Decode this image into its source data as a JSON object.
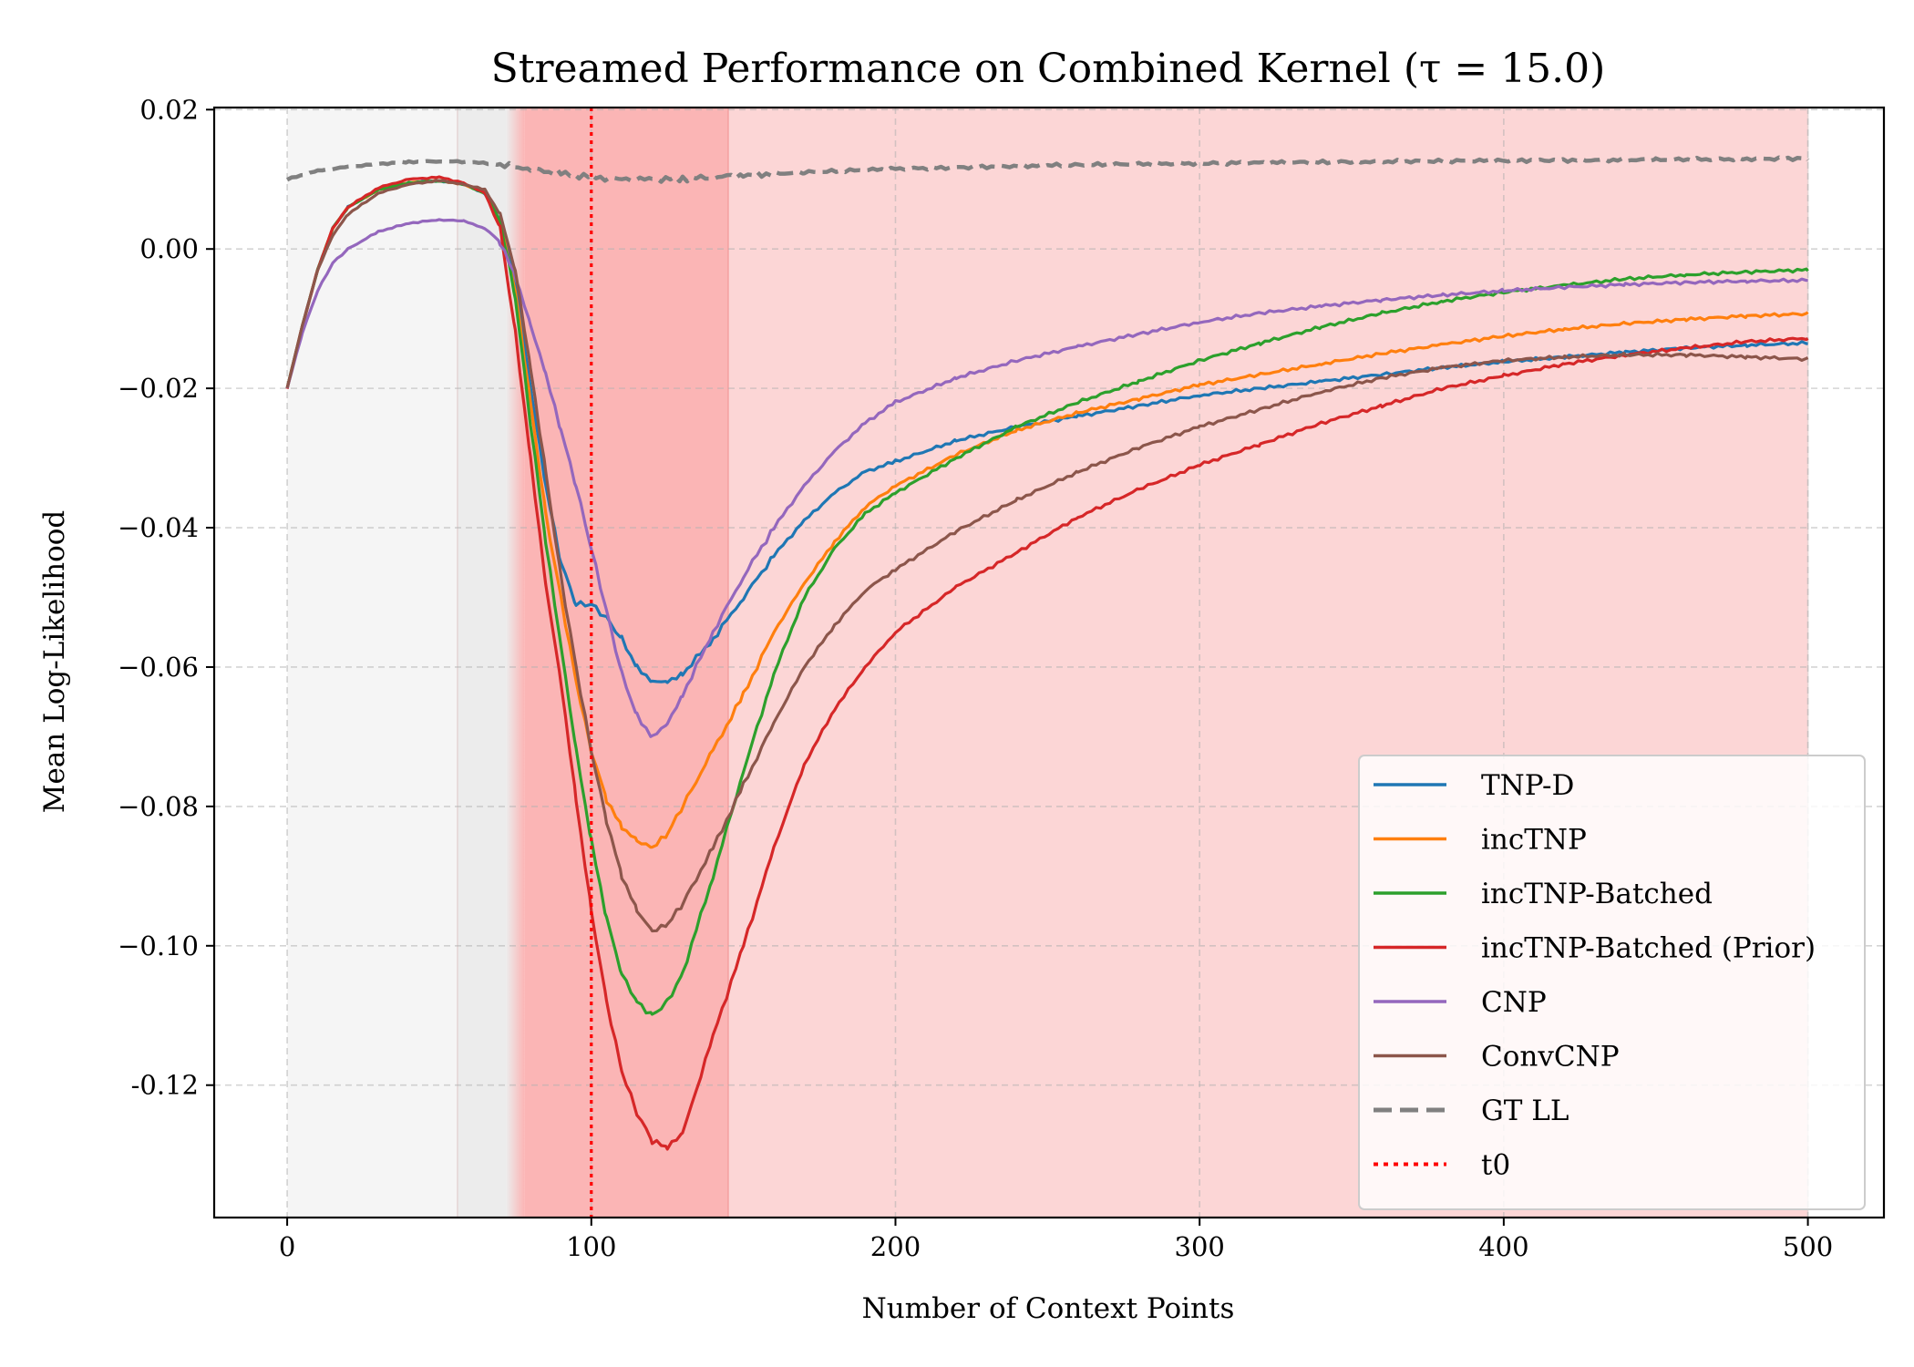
{
  "chart_data": {
    "type": "line",
    "title": "Streamed Performance on Combined Kernel (τ = 15.0)",
    "xlabel": "Number of Context Points",
    "ylabel": "Mean Log-Likelihood",
    "xlim": [
      -24,
      525
    ],
    "ylim": [
      -0.139,
      0.0203
    ],
    "xticks": [
      0,
      100,
      200,
      300,
      400,
      500
    ],
    "xtick_labels": [
      "0",
      "100",
      "200",
      "300",
      "400",
      "500"
    ],
    "yticks": [
      0.02,
      0.0,
      -0.02,
      -0.04,
      -0.06,
      -0.08,
      -0.1,
      -0.12
    ],
    "ytick_labels": [
      "0.02",
      "0.00",
      "−0.02",
      "−0.04",
      "−0.06",
      "−0.08",
      "−0.10",
      "-0.12"
    ],
    "grid": true,
    "legend_position": "bottom-right",
    "shaded_regions": [
      {
        "x_start": 0,
        "x_end": 56,
        "color": "#f5f5f5"
      },
      {
        "x_start": 56,
        "x_end": 72,
        "color": "#ececec"
      },
      {
        "x_start": 72,
        "x_end": 78,
        "color": "#fcc2c2",
        "gradient_from": "#ececec"
      },
      {
        "x_start": 78,
        "x_end": 145,
        "color": "#fbb5b5"
      },
      {
        "x_start": 145,
        "x_end": 500,
        "color": "#fcd6d6"
      }
    ],
    "series": [
      {
        "name": "TNP-D",
        "color": "#1f77b4",
        "style": "solid",
        "x": [
          0,
          5,
          10,
          15,
          20,
          30,
          40,
          50,
          58,
          65,
          70,
          75,
          80,
          85,
          90,
          95,
          100,
          105,
          110,
          115,
          120,
          125,
          130,
          140,
          150,
          160,
          170,
          180,
          190,
          200,
          220,
          240,
          260,
          280,
          300,
          320,
          340,
          360,
          380,
          400,
          420,
          440,
          460,
          480,
          500
        ],
        "y": [
          -0.02,
          -0.011,
          -0.003,
          0.003,
          0.006,
          0.0085,
          0.0095,
          0.0098,
          0.0093,
          0.008,
          0.004,
          -0.005,
          -0.02,
          -0.034,
          -0.045,
          -0.051,
          -0.051,
          -0.053,
          -0.056,
          -0.06,
          -0.062,
          -0.062,
          -0.061,
          -0.056,
          -0.05,
          -0.044,
          -0.039,
          -0.035,
          -0.032,
          -0.0305,
          -0.0275,
          -0.0255,
          -0.024,
          -0.0225,
          -0.021,
          -0.02,
          -0.019,
          -0.018,
          -0.017,
          -0.0162,
          -0.0155,
          -0.0148,
          -0.0142,
          -0.0138,
          -0.0135
        ]
      },
      {
        "name": "incTNP",
        "color": "#ff7f0e",
        "style": "solid",
        "x": [
          0,
          5,
          10,
          15,
          20,
          30,
          40,
          50,
          58,
          65,
          70,
          75,
          80,
          85,
          90,
          95,
          100,
          105,
          110,
          115,
          120,
          125,
          130,
          140,
          150,
          160,
          170,
          180,
          190,
          200,
          220,
          240,
          260,
          280,
          300,
          320,
          340,
          360,
          380,
          400,
          420,
          440,
          460,
          480,
          500
        ],
        "y": [
          -0.02,
          -0.011,
          -0.003,
          0.003,
          0.006,
          0.0085,
          0.0095,
          0.0098,
          0.0093,
          0.008,
          0.004,
          -0.006,
          -0.022,
          -0.038,
          -0.05,
          -0.062,
          -0.072,
          -0.079,
          -0.083,
          -0.085,
          -0.086,
          -0.084,
          -0.08,
          -0.072,
          -0.064,
          -0.055,
          -0.048,
          -0.042,
          -0.037,
          -0.034,
          -0.0295,
          -0.026,
          -0.0235,
          -0.0215,
          -0.0195,
          -0.018,
          -0.0165,
          -0.015,
          -0.0137,
          -0.0125,
          -0.0115,
          -0.0107,
          -0.0101,
          -0.0096,
          -0.0093
        ]
      },
      {
        "name": "incTNP-Batched",
        "color": "#2ca02c",
        "style": "solid",
        "x": [
          0,
          5,
          10,
          15,
          20,
          30,
          40,
          50,
          58,
          65,
          70,
          75,
          80,
          85,
          90,
          95,
          100,
          105,
          110,
          115,
          120,
          125,
          130,
          140,
          150,
          160,
          170,
          180,
          190,
          200,
          220,
          240,
          260,
          280,
          300,
          320,
          340,
          360,
          380,
          400,
          420,
          440,
          460,
          480,
          500
        ],
        "y": [
          -0.02,
          -0.011,
          -0.003,
          0.003,
          0.006,
          0.0085,
          0.0095,
          0.0098,
          0.0093,
          0.008,
          0.004,
          -0.007,
          -0.025,
          -0.042,
          -0.057,
          -0.072,
          -0.085,
          -0.096,
          -0.104,
          -0.108,
          -0.11,
          -0.108,
          -0.104,
          -0.09,
          -0.075,
          -0.061,
          -0.05,
          -0.043,
          -0.038,
          -0.035,
          -0.03,
          -0.0255,
          -0.022,
          -0.019,
          -0.016,
          -0.0135,
          -0.0112,
          -0.0092,
          -0.0075,
          -0.0062,
          -0.0052,
          -0.0043,
          -0.0037,
          -0.0033,
          -0.003
        ]
      },
      {
        "name": "incTNP-Batched (Prior)",
        "color": "#d62728",
        "style": "solid",
        "x": [
          0,
          5,
          10,
          15,
          20,
          30,
          40,
          50,
          58,
          65,
          70,
          75,
          80,
          85,
          90,
          95,
          100,
          105,
          110,
          115,
          120,
          125,
          130,
          140,
          150,
          160,
          170,
          180,
          190,
          200,
          220,
          240,
          260,
          280,
          300,
          320,
          340,
          360,
          380,
          400,
          420,
          440,
          460,
          480,
          500
        ],
        "y": [
          -0.02,
          -0.011,
          -0.003,
          0.003,
          0.006,
          0.0088,
          0.01,
          0.0103,
          0.0095,
          0.008,
          0.003,
          -0.012,
          -0.03,
          -0.048,
          -0.062,
          -0.079,
          -0.095,
          -0.108,
          -0.118,
          -0.124,
          -0.128,
          -0.129,
          -0.127,
          -0.113,
          -0.1,
          -0.086,
          -0.074,
          -0.066,
          -0.06,
          -0.055,
          -0.0485,
          -0.0435,
          -0.0385,
          -0.0345,
          -0.031,
          -0.028,
          -0.025,
          -0.0225,
          -0.02,
          -0.0182,
          -0.0165,
          -0.0152,
          -0.0142,
          -0.0133,
          -0.0128
        ]
      },
      {
        "name": "CNP",
        "color": "#9467bd",
        "style": "solid",
        "x": [
          0,
          5,
          10,
          15,
          20,
          30,
          40,
          50,
          58,
          65,
          70,
          75,
          80,
          85,
          90,
          95,
          100,
          105,
          110,
          115,
          120,
          125,
          130,
          140,
          150,
          160,
          170,
          180,
          190,
          200,
          220,
          240,
          260,
          280,
          300,
          320,
          340,
          360,
          380,
          400,
          420,
          440,
          460,
          480,
          500
        ],
        "y": [
          -0.02,
          -0.012,
          -0.006,
          -0.002,
          0.0,
          0.0025,
          0.0037,
          0.0042,
          0.004,
          0.003,
          0.001,
          -0.004,
          -0.011,
          -0.018,
          -0.026,
          -0.034,
          -0.043,
          -0.052,
          -0.061,
          -0.067,
          -0.07,
          -0.068,
          -0.064,
          -0.055,
          -0.047,
          -0.04,
          -0.034,
          -0.029,
          -0.025,
          -0.022,
          -0.0185,
          -0.016,
          -0.014,
          -0.0122,
          -0.0105,
          -0.0092,
          -0.0082,
          -0.0073,
          -0.0066,
          -0.006,
          -0.0055,
          -0.0051,
          -0.0048,
          -0.0046,
          -0.0045
        ]
      },
      {
        "name": "ConvCNP",
        "color": "#8c564b",
        "style": "solid",
        "x": [
          0,
          5,
          10,
          15,
          20,
          30,
          40,
          50,
          58,
          65,
          70,
          75,
          80,
          85,
          90,
          95,
          100,
          105,
          110,
          115,
          120,
          125,
          130,
          140,
          150,
          160,
          170,
          180,
          190,
          200,
          220,
          240,
          260,
          280,
          300,
          320,
          340,
          360,
          380,
          400,
          420,
          440,
          460,
          480,
          500
        ],
        "y": [
          -0.02,
          -0.011,
          -0.003,
          0.002,
          0.005,
          0.008,
          0.0093,
          0.0098,
          0.0093,
          0.0085,
          0.005,
          -0.003,
          -0.017,
          -0.032,
          -0.047,
          -0.06,
          -0.072,
          -0.082,
          -0.09,
          -0.095,
          -0.098,
          -0.097,
          -0.094,
          -0.086,
          -0.077,
          -0.068,
          -0.06,
          -0.054,
          -0.049,
          -0.046,
          -0.0405,
          -0.036,
          -0.032,
          -0.0285,
          -0.0255,
          -0.023,
          -0.0205,
          -0.0185,
          -0.017,
          -0.016,
          -0.0155,
          -0.0152,
          -0.0152,
          -0.0155,
          -0.0158
        ]
      },
      {
        "name": "GT LL",
        "color": "#808080",
        "style": "dashed",
        "x": [
          0,
          10,
          20,
          30,
          40,
          50,
          60,
          70,
          80,
          90,
          100,
          110,
          120,
          130,
          140,
          150,
          170,
          200,
          250,
          300,
          350,
          400,
          450,
          500
        ],
        "y": [
          0.01,
          0.0112,
          0.0118,
          0.0122,
          0.0125,
          0.0126,
          0.0125,
          0.0121,
          0.0115,
          0.0108,
          0.0103,
          0.01,
          0.01,
          0.0101,
          0.0103,
          0.0106,
          0.011,
          0.0115,
          0.012,
          0.0123,
          0.0125,
          0.0127,
          0.0128,
          0.013
        ]
      }
    ],
    "vertical_lines": [
      {
        "name": "t0",
        "x": 100,
        "color": "#ff0000",
        "style": "dotted"
      }
    ]
  }
}
